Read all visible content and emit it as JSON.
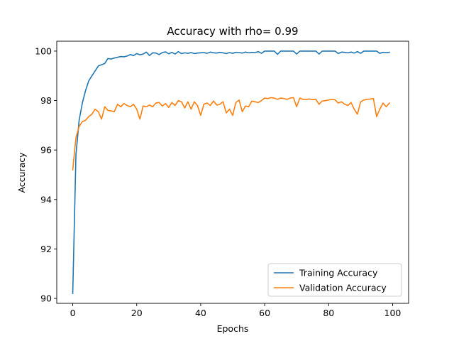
{
  "chart_data": {
    "type": "line",
    "title": "Accuracy with rho= 0.99",
    "xlabel": "Epochs",
    "ylabel": "Accuracy",
    "xlim": [
      -5,
      105
    ],
    "ylim": [
      89.8,
      100.4
    ],
    "xticks": [
      0,
      20,
      40,
      60,
      80,
      100
    ],
    "yticks": [
      90,
      92,
      94,
      96,
      98,
      100
    ],
    "grid": false,
    "legend_position": "lower-right",
    "series": [
      {
        "name": "Training Accuracy",
        "color": "#1f77b4",
        "values": [
          90.2,
          95.8,
          97.2,
          97.9,
          98.4,
          98.8,
          99.0,
          99.2,
          99.4,
          99.45,
          99.5,
          99.7,
          99.68,
          99.72,
          99.75,
          99.78,
          99.77,
          99.8,
          99.86,
          99.82,
          99.9,
          99.85,
          99.88,
          99.96,
          99.82,
          99.93,
          99.92,
          99.86,
          99.94,
          99.97,
          99.89,
          99.95,
          99.88,
          99.98,
          99.9,
          99.93,
          99.91,
          99.94,
          99.9,
          99.92,
          99.93,
          99.94,
          99.91,
          99.96,
          99.93,
          99.92,
          99.95,
          99.93,
          99.9,
          99.94,
          99.91,
          99.95,
          99.94,
          99.92,
          99.96,
          99.93,
          99.95,
          99.94,
          99.98,
          99.91,
          100.0,
          100.0,
          100.0,
          100.0,
          99.87,
          100.0,
          100.0,
          100.0,
          100.0,
          100.0,
          99.88,
          100.0,
          100.0,
          100.0,
          100.0,
          100.0,
          100.0,
          99.88,
          100.0,
          100.0,
          100.0,
          100.0,
          100.0,
          99.9,
          99.96,
          99.95,
          99.93,
          99.96,
          99.92,
          99.98,
          99.91,
          100.0,
          100.0,
          100.0,
          100.0,
          100.0,
          99.91,
          99.95,
          99.94,
          99.95
        ]
      },
      {
        "name": "Validation Accuracy",
        "color": "#ff7f0e",
        "values": [
          95.2,
          96.5,
          96.95,
          97.15,
          97.2,
          97.35,
          97.45,
          97.65,
          97.55,
          97.25,
          97.75,
          97.6,
          97.58,
          97.55,
          97.85,
          97.75,
          97.88,
          97.8,
          97.75,
          97.85,
          97.65,
          97.25,
          97.78,
          97.75,
          97.82,
          97.75,
          97.9,
          97.92,
          97.78,
          97.88,
          97.72,
          97.92,
          97.8,
          98.0,
          97.95,
          97.7,
          97.95,
          97.65,
          97.95,
          97.8,
          97.4,
          97.85,
          97.9,
          97.8,
          97.98,
          97.82,
          97.85,
          97.95,
          97.5,
          97.65,
          97.4,
          97.92,
          98.02,
          97.55,
          97.78,
          97.75,
          97.98,
          97.95,
          97.92,
          98.0,
          98.1,
          98.08,
          98.12,
          98.1,
          98.05,
          98.1,
          98.08,
          98.05,
          98.1,
          98.12,
          97.75,
          98.1,
          98.05,
          98.05,
          98.06,
          98.04,
          98.05,
          97.85,
          97.98,
          98.0,
          98.02,
          98.05,
          98.03,
          97.9,
          97.95,
          97.85,
          97.8,
          97.92,
          97.65,
          97.45,
          97.95,
          98.02,
          98.05,
          98.06,
          98.08,
          97.35,
          97.65,
          97.9,
          97.75,
          97.9
        ]
      }
    ]
  }
}
